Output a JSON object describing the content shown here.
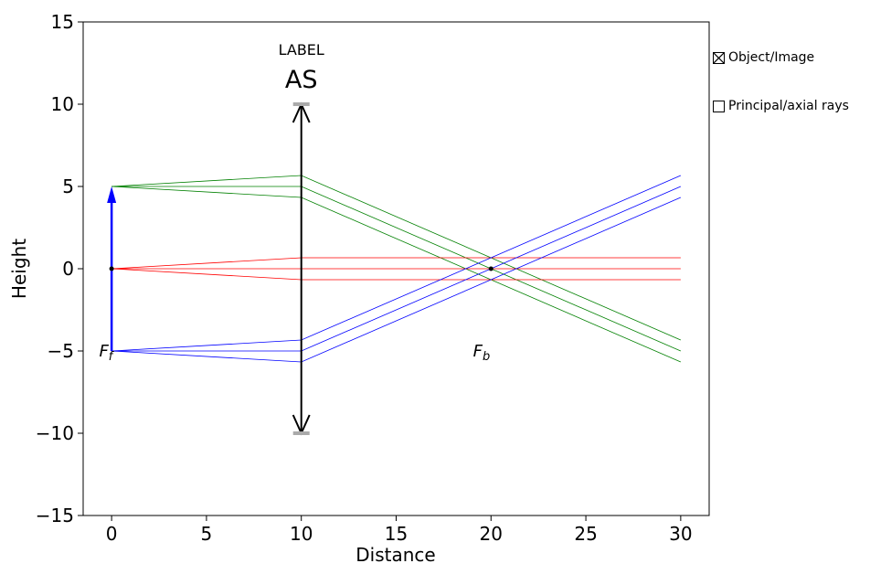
{
  "chart_data": {
    "type": "line",
    "title": "",
    "xlabel": "Distance",
    "ylabel": "Height",
    "xlim": [
      -1.5,
      31.5
    ],
    "ylim": [
      -15,
      15
    ],
    "x_ticks": [
      0,
      5,
      10,
      15,
      20,
      25,
      30
    ],
    "y_ticks": [
      -15,
      -10,
      -5,
      0,
      5,
      10,
      15
    ],
    "x_tick_labels": [
      "0",
      "5",
      "10",
      "15",
      "20",
      "25",
      "30"
    ],
    "y_tick_labels": [
      "−15",
      "−10",
      "−5",
      "0",
      "5",
      "10",
      "15"
    ],
    "grid": false,
    "colors": {
      "top_rays": "#008000",
      "axis_rays": "#ff0000",
      "bottom_rays": "#0000ff",
      "object_arrow": "#0000ff",
      "lens": "#000000",
      "stop_marker": "#aaaaaa"
    },
    "lens": {
      "x": 10,
      "y_min": -10,
      "y_max": 10,
      "stop_label": "LABEL",
      "stop_name": "AS"
    },
    "object": {
      "x": 0,
      "y_from": -5,
      "y_to": 5
    },
    "focal_points": [
      {
        "name": "F_f",
        "label_main": "F",
        "label_sub": "f",
        "x": 0,
        "y": 0,
        "label_x": -0.3,
        "label_y": -5
      },
      {
        "name": "F_b",
        "label_main": "F",
        "label_sub": "b",
        "x": 20,
        "y": 0,
        "label_x": 19.5,
        "label_y": -5
      }
    ],
    "series": [
      {
        "group": "top",
        "color": "#008000",
        "x": [
          0,
          10,
          30
        ],
        "y": [
          5,
          5.667,
          -4.333
        ]
      },
      {
        "group": "top",
        "color": "#008000",
        "x": [
          0,
          10,
          30
        ],
        "y": [
          5,
          5,
          -5
        ]
      },
      {
        "group": "top",
        "color": "#008000",
        "x": [
          0,
          10,
          30
        ],
        "y": [
          5,
          4.333,
          -5.667
        ]
      },
      {
        "group": "axis",
        "color": "#ff0000",
        "x": [
          0,
          10,
          30
        ],
        "y": [
          0,
          0.667,
          0.667
        ]
      },
      {
        "group": "axis",
        "color": "#ff0000",
        "x": [
          0,
          10,
          30
        ],
        "y": [
          0,
          0,
          0
        ]
      },
      {
        "group": "axis",
        "color": "#ff0000",
        "x": [
          0,
          10,
          30
        ],
        "y": [
          0,
          -0.667,
          -0.667
        ]
      },
      {
        "group": "bottom",
        "color": "#0000ff",
        "x": [
          0,
          10,
          30
        ],
        "y": [
          -5,
          -4.333,
          5.667
        ]
      },
      {
        "group": "bottom",
        "color": "#0000ff",
        "x": [
          0,
          10,
          30
        ],
        "y": [
          -5,
          -5,
          5
        ]
      },
      {
        "group": "bottom",
        "color": "#0000ff",
        "x": [
          0,
          10,
          30
        ],
        "y": [
          -5,
          -5.667,
          4.333
        ]
      }
    ]
  },
  "legend": {
    "items": [
      {
        "label": "Object/Image",
        "checked": true
      },
      {
        "label": "Principal/axial rays",
        "checked": false
      }
    ]
  }
}
